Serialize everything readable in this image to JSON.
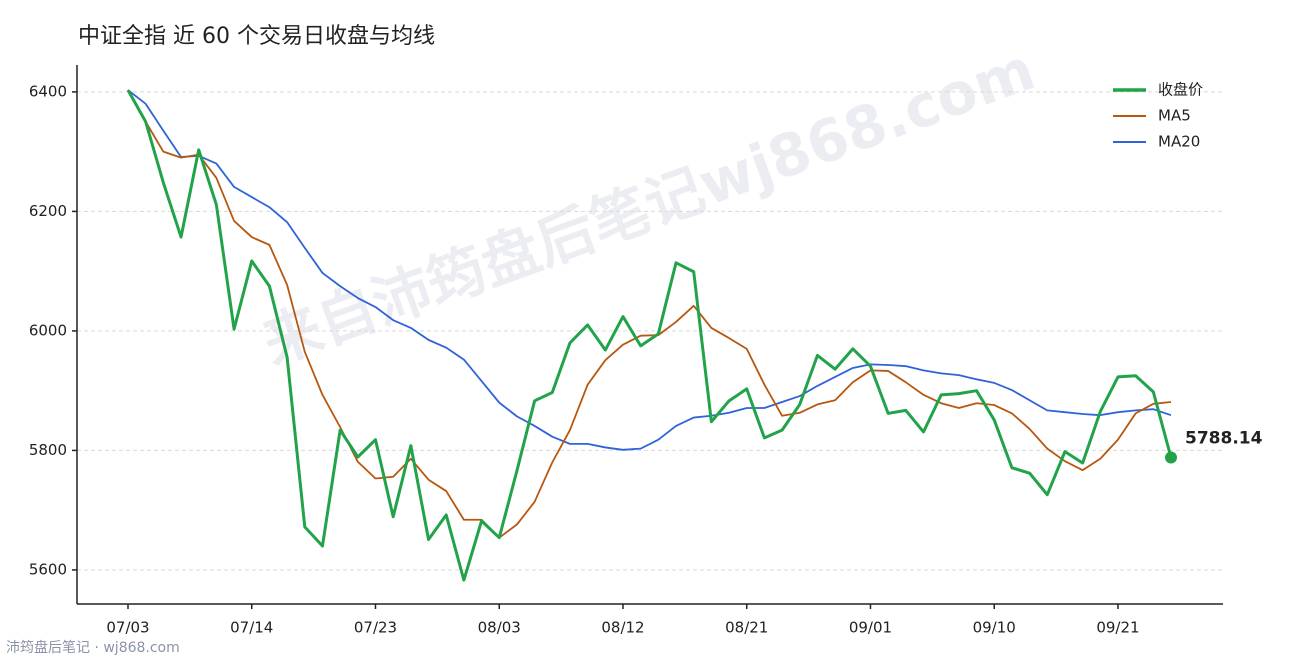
{
  "chart_data": {
    "type": "line",
    "title": "中证全指 近 60 个交易日收盘与均线",
    "watermark": "来自沛筠盘后笔记wj868.com",
    "footer": "沛筠盘后笔记 · wj868.com",
    "categories": [
      "07/03",
      null,
      null,
      null,
      null,
      null,
      null,
      "07/14",
      null,
      null,
      null,
      null,
      null,
      null,
      "07/23",
      null,
      null,
      null,
      null,
      null,
      null,
      "08/03",
      null,
      null,
      null,
      null,
      null,
      null,
      "08/12",
      null,
      null,
      null,
      null,
      null,
      null,
      "08/21",
      null,
      null,
      null,
      null,
      null,
      null,
      "09/01",
      null,
      null,
      null,
      null,
      null,
      null,
      "09/10",
      null,
      null,
      null,
      null,
      null,
      null,
      "09/21",
      null,
      null,
      null
    ],
    "series": [
      {
        "name": "收盘价",
        "color": "#22a34a",
        "values": [
          6403,
          6350,
          6248,
          6157,
          6303,
          6211,
          6003,
          6117,
          6075,
          5956,
          5672,
          5640,
          5834,
          5789,
          5818,
          5689,
          5808,
          5651,
          5692,
          5583,
          5682,
          5654,
          5766,
          5883,
          5897,
          5980,
          6010,
          5968,
          6024,
          5975,
          5995,
          6114,
          6099,
          5848,
          5883,
          5903,
          5821,
          5834,
          5877,
          5959,
          5936,
          5970,
          5941,
          5862,
          5867,
          5831,
          5893,
          5895,
          5900,
          5851,
          5771,
          5762,
          5726,
          5798,
          5779,
          5865,
          5923,
          5925,
          5898,
          5788.14
        ]
      },
      {
        "name": "MA5",
        "color": "#b8570f",
        "values": [
          6403,
          6350,
          6300,
          6290,
          6295,
          6256,
          6184,
          6157,
          6144,
          6077,
          5965,
          5893,
          5839,
          5781,
          5753,
          5756,
          5786,
          5751,
          5732,
          5684,
          5684,
          5654,
          5676,
          5714,
          5780,
          5834,
          5910,
          5951,
          5977,
          5992,
          5993,
          6015,
          6042,
          6005,
          5988,
          5970,
          5910,
          5858,
          5863,
          5877,
          5884,
          5914,
          5934,
          5933,
          5914,
          5893,
          5879,
          5871,
          5879,
          5876,
          5862,
          5836,
          5803,
          5782,
          5767,
          5786,
          5818,
          5862,
          5878,
          5881
        ]
      },
      {
        "name": "MA20",
        "color": "#2f63d8",
        "values": [
          6403,
          6380,
          6335,
          6291,
          6293,
          6280,
          6241,
          6224,
          6207,
          6182,
          6139,
          6097,
          6075,
          6055,
          6040,
          6018,
          6005,
          5985,
          5972,
          5952,
          5916,
          5880,
          5857,
          5841,
          5823,
          5811,
          5811,
          5805,
          5801,
          5803,
          5818,
          5841,
          5855,
          5858,
          5863,
          5871,
          5871,
          5881,
          5891,
          5908,
          5923,
          5938,
          5944,
          5943,
          5941,
          5934,
          5929,
          5926,
          5919,
          5913,
          5901,
          5884,
          5867,
          5864,
          5861,
          5859,
          5864,
          5867,
          5869,
          5859
        ]
      }
    ],
    "ylim": [
      5543,
      6445
    ],
    "yticks": [
      5600,
      5800,
      6000,
      6200,
      6400
    ],
    "grid": true,
    "legend": "upper-right"
  }
}
